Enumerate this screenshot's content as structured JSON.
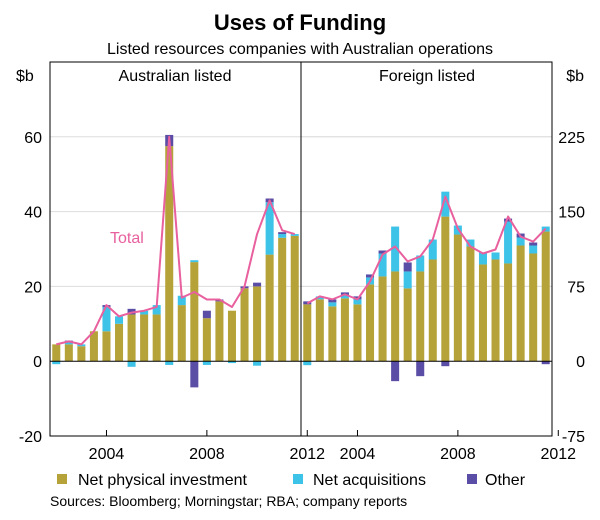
{
  "chart_data": {
    "type": "bar",
    "title": "Uses of Funding",
    "subtitle": "Listed resources companies with Australian operations",
    "left_unit": "$b",
    "right_unit": "$b",
    "left_axis": {
      "ylim": [
        -20,
        80
      ],
      "ticks": [
        "60",
        "40",
        "20",
        "0",
        "-20"
      ],
      "tick_values": [
        60,
        40,
        20,
        0,
        -20
      ]
    },
    "right_axis": {
      "ylim": [
        -75,
        300
      ],
      "ticks": [
        "225",
        "150",
        "75",
        "0",
        "-75"
      ],
      "tick_values": [
        225,
        150,
        75,
        0,
        -75
      ]
    },
    "legend": [
      "Net physical investment",
      "Net acquisitions",
      "Other"
    ],
    "total_label": "Total",
    "colors": {
      "physical": "#b5a33a",
      "acquisitions": "#3ec3e8",
      "other": "#5a4da6",
      "total": "#e8609e",
      "axis": "#000000"
    },
    "source": "Sources: Bloomberg; Morningstar; RBA; company reports",
    "panels": [
      {
        "name": "Australian listed",
        "axis": "left",
        "x_ticks": [
          "2004",
          "2008",
          "2012"
        ],
        "x_tick_index": [
          4.5,
          12.5,
          20.5
        ],
        "series": {
          "physical": [
            4.5,
            4.5,
            4.0,
            8.0,
            8.0,
            10.0,
            12.5,
            12.5,
            12.5,
            57.5,
            15.0,
            26.5,
            11.5,
            16.0,
            13.5,
            19.5,
            20.0,
            28.5,
            33.0,
            33.5
          ],
          "acquisitions": [
            -0.8,
            0.5,
            0.5,
            0,
            6.5,
            2.0,
            -1.5,
            1.0,
            2.5,
            -1.0,
            2.5,
            0.5,
            -1.0,
            0,
            -0.5,
            0,
            -1.2,
            14.0,
            1.0,
            0.5
          ],
          "other": [
            0,
            0.5,
            0,
            0,
            0.5,
            0,
            1.5,
            0,
            0,
            3.0,
            0,
            -7.0,
            2.0,
            0.5,
            0,
            0.5,
            1.0,
            1.0,
            0.5,
            0
          ],
          "total": [
            4.5,
            5.3,
            4.5,
            8.0,
            15.0,
            12.0,
            13.0,
            13.5,
            14.5,
            60.0,
            17.0,
            18.5,
            16.5,
            16.5,
            14.5,
            20.0,
            34.0,
            43.0,
            35.0,
            34.0
          ]
        }
      },
      {
        "name": "Foreign listed",
        "axis": "right",
        "x_ticks": [
          "2004",
          "2008",
          "2012"
        ],
        "x_tick_index": [
          4.5,
          12.5,
          20.5
        ],
        "series": {
          "physical": [
            57,
            62,
            55,
            63,
            57,
            77,
            85,
            90,
            73,
            90,
            102,
            145,
            127,
            115,
            97,
            102,
            98,
            116,
            108,
            130
          ],
          "acquisitions": [
            -4,
            3,
            4,
            3,
            5,
            7,
            23,
            45,
            17,
            16,
            20,
            25,
            9,
            7,
            12,
            7,
            42,
            8,
            8,
            5
          ],
          "other": [
            3,
            0,
            3,
            3,
            3,
            3,
            3,
            -20,
            9,
            -15,
            0,
            -5,
            0,
            0,
            0,
            0,
            3,
            4,
            3,
            -3
          ],
          "total": [
            58,
            65,
            62,
            67,
            62,
            80,
            107,
            115,
            100,
            105,
            122,
            165,
            133,
            115,
            108,
            112,
            145,
            125,
            120,
            133
          ]
        }
      }
    ]
  }
}
